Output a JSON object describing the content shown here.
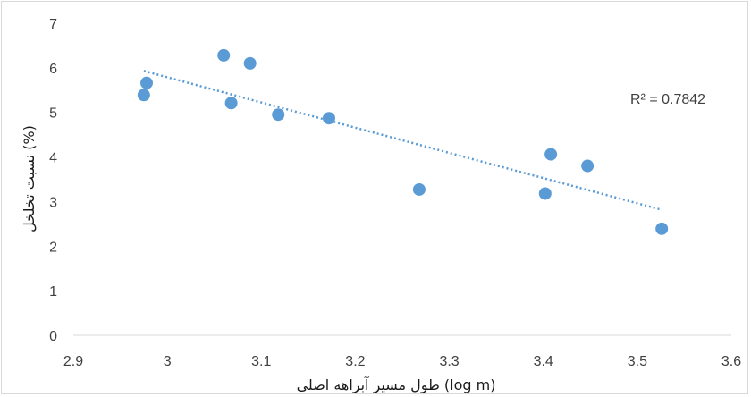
{
  "chart_data": {
    "type": "scatter",
    "title": "",
    "xlabel": "طول مسیر آبراهه اصلی (log m)",
    "ylabel": "نسبت تخلخل (%)",
    "xlim": [
      2.9,
      3.6
    ],
    "ylim": [
      0,
      7
    ],
    "x_ticks": [
      "2.9",
      "3",
      "3.1",
      "3.2",
      "3.3",
      "3.4",
      "3.5",
      "3.6"
    ],
    "y_ticks": [
      "0",
      "1",
      "2",
      "3",
      "4",
      "5",
      "6",
      "7"
    ],
    "grid": false,
    "marker_color": "#5b9bd5",
    "trendline": {
      "style": "dotted",
      "color": "#5b9bd5",
      "start": {
        "x": 2.975,
        "y": 5.93
      },
      "end": {
        "x": 3.525,
        "y": 2.82
      }
    },
    "annotation": "R² = 0.7842",
    "points": [
      {
        "x": 2.975,
        "y": 5.39
      },
      {
        "x": 2.978,
        "y": 5.66
      },
      {
        "x": 3.06,
        "y": 6.28
      },
      {
        "x": 3.068,
        "y": 5.21
      },
      {
        "x": 3.088,
        "y": 6.1
      },
      {
        "x": 3.118,
        "y": 4.95
      },
      {
        "x": 3.172,
        "y": 4.87
      },
      {
        "x": 3.268,
        "y": 3.27
      },
      {
        "x": 3.402,
        "y": 3.18
      },
      {
        "x": 3.408,
        "y": 4.06
      },
      {
        "x": 3.447,
        "y": 3.8
      },
      {
        "x": 3.526,
        "y": 2.39
      }
    ]
  }
}
